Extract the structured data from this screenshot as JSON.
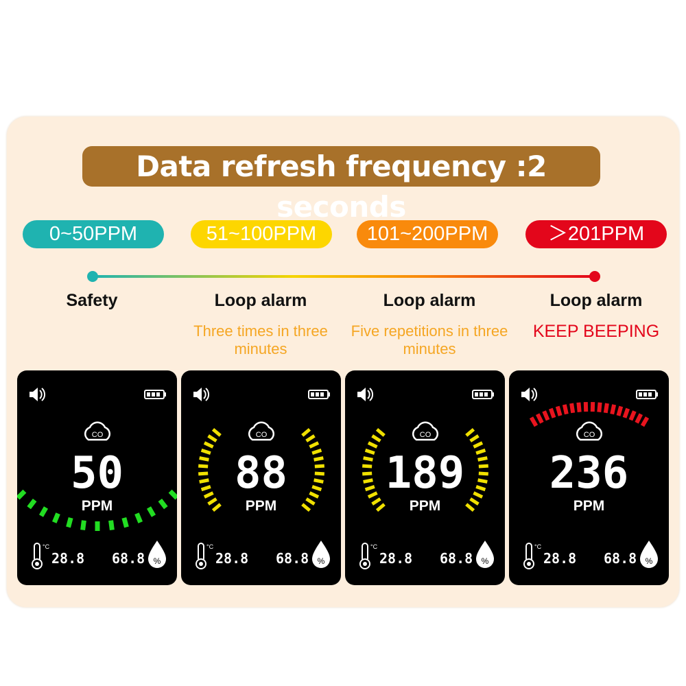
{
  "title": "Data refresh frequency :2 seconds",
  "levels": [
    {
      "range": "0~50PPM",
      "color": "#1fb3b0",
      "label": "Safety",
      "detail": "",
      "detail_color": "#f5a623"
    },
    {
      "range": "51~100PPM",
      "color": "#fdd600",
      "label": "Loop alarm",
      "detail": "Three times in three minutes",
      "detail_color": "#f5a623"
    },
    {
      "range": "101~200PPM",
      "color": "#f98a0c",
      "label": "Loop alarm",
      "detail": "Five repetitions in three minutes",
      "detail_color": "#f5a623"
    },
    {
      "range": "＞201PPM",
      "color": "#e3061b",
      "label": "Loop alarm",
      "detail": "KEEP BEEPING",
      "detail_color": "#e3061b"
    }
  ],
  "screens": [
    {
      "value": "50",
      "unit": "PPM",
      "gas": "CO",
      "temp": "28.8",
      "temp_unit": "°C",
      "humidity": "68.8",
      "humidity_unit": "%",
      "arc": "bottom",
      "arc_color": "#22dd22"
    },
    {
      "value": "88",
      "unit": "PPM",
      "gas": "CO",
      "temp": "28.8",
      "temp_unit": "°C",
      "humidity": "68.8",
      "humidity_unit": "%",
      "arc": "sides",
      "arc_color": "#f0e000"
    },
    {
      "value": "189",
      "unit": "PPM",
      "gas": "CO",
      "temp": "28.8",
      "temp_unit": "°C",
      "humidity": "68.8",
      "humidity_unit": "%",
      "arc": "sides",
      "arc_color": "#f0e000"
    },
    {
      "value": "236",
      "unit": "PPM",
      "gas": "CO",
      "temp": "28.8",
      "temp_unit": "°C",
      "humidity": "68.8",
      "humidity_unit": "%",
      "arc": "top",
      "arc_color": "#e8141e"
    }
  ]
}
